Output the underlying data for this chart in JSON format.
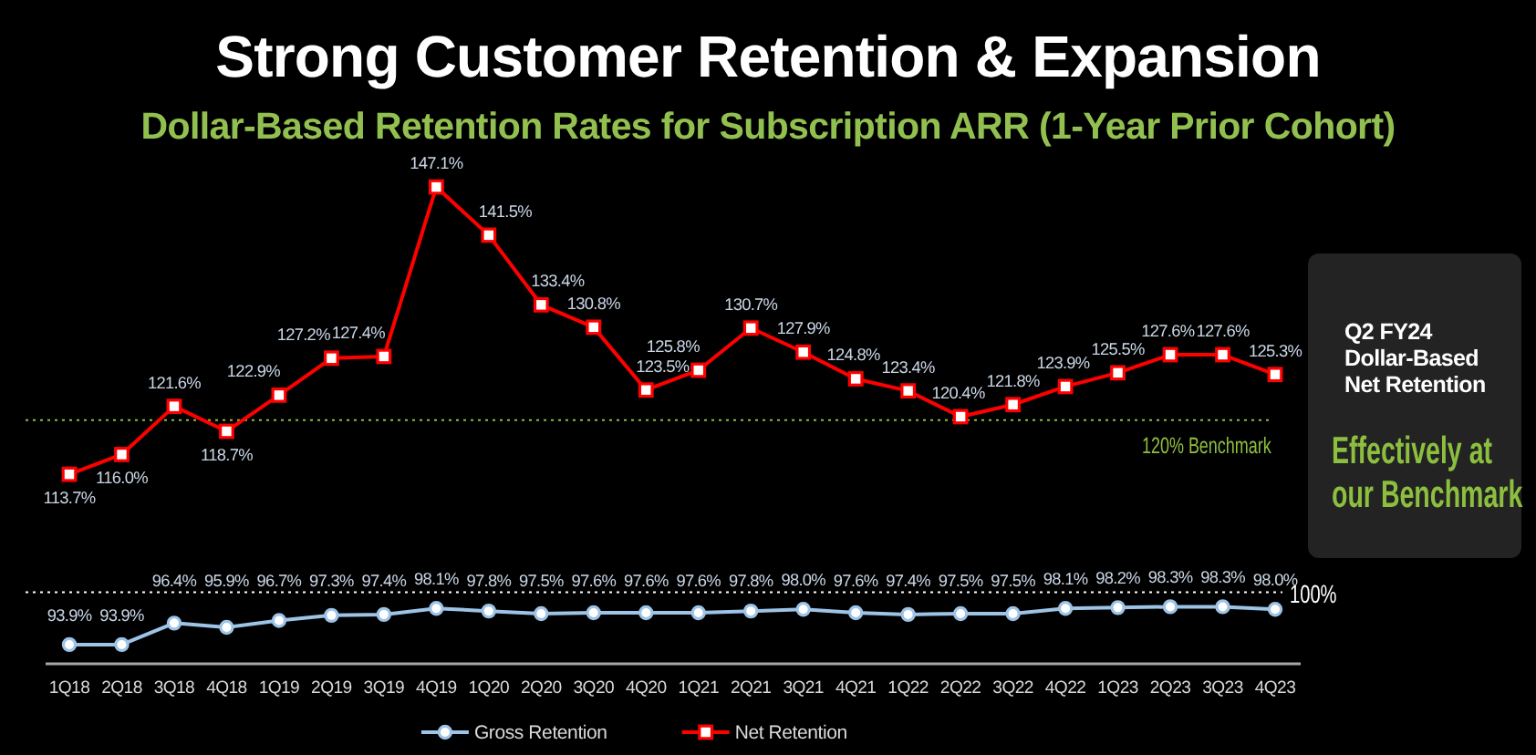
{
  "chart_data": {
    "type": "line",
    "title": "Strong Customer Retention & Expansion",
    "subtitle": "Dollar-Based Retention Rates for Subscription ARR (1-Year Prior Cohort)",
    "categories": [
      "1Q18",
      "2Q18",
      "3Q18",
      "4Q18",
      "1Q19",
      "2Q19",
      "3Q19",
      "4Q19",
      "1Q20",
      "2Q20",
      "3Q20",
      "4Q20",
      "1Q21",
      "2Q21",
      "3Q21",
      "4Q21",
      "1Q22",
      "2Q22",
      "3Q22",
      "4Q22",
      "1Q23",
      "2Q23",
      "3Q23",
      "4Q23"
    ],
    "series": [
      {
        "name": "Gross Retention",
        "color": "#9dc3e6",
        "marker": "circle",
        "values": [
          93.9,
          93.9,
          96.4,
          95.9,
          96.7,
          97.3,
          97.4,
          98.1,
          97.8,
          97.5,
          97.6,
          97.6,
          97.6,
          97.8,
          98.0,
          97.6,
          97.4,
          97.5,
          97.5,
          98.1,
          98.2,
          98.3,
          98.3,
          98.0
        ],
        "value_labels": [
          "93.9%",
          "93.9%",
          "96.4%",
          "95.9%",
          "96.7%",
          "97.3%",
          "97.4%",
          "98.1%",
          "97.8%",
          "97.5%",
          "97.6%",
          "97.6%",
          "97.6%",
          "97.8%",
          "98.0%",
          "97.6%",
          "97.4%",
          "97.5%",
          "97.5%",
          "98.1%",
          "98.2%",
          "98.3%",
          "98.3%",
          "98.0%"
        ]
      },
      {
        "name": "Net Retention",
        "color": "#ff0000",
        "marker": "square",
        "values": [
          113.7,
          116.0,
          121.6,
          118.7,
          122.9,
          127.2,
          127.4,
          147.1,
          141.5,
          133.4,
          130.8,
          123.5,
          125.8,
          130.7,
          127.9,
          124.8,
          123.4,
          120.4,
          121.8,
          123.9,
          125.5,
          127.6,
          127.6,
          125.3
        ],
        "value_labels": [
          "113.7%",
          "116.0%",
          "121.6%",
          "118.7%",
          "122.9%",
          "127.2%",
          "127.4%",
          "147.1%",
          "141.5%",
          "133.4%",
          "130.8%",
          "123.5%",
          "125.8%",
          "130.7%",
          "127.9%",
          "124.8%",
          "123.4%",
          "120.4%",
          "121.8%",
          "123.9%",
          "125.5%",
          "127.6%",
          "127.6%",
          "125.3%"
        ]
      }
    ],
    "tick_labels": "x",
    "legend": "bottom",
    "ref_lines": [
      {
        "axis": "y",
        "value": 120,
        "label": "120% Benchmark",
        "color": "#8fbf3f",
        "line_style": "dotted"
      },
      {
        "axis": "y",
        "value": 100,
        "label": "100%",
        "color": "#ffffff",
        "line_style": "dotted"
      }
    ],
    "annotations": [
      "Q2 FY24 Dollar-Based Net Retention",
      "Effectively at our Benchmark"
    ]
  }
}
